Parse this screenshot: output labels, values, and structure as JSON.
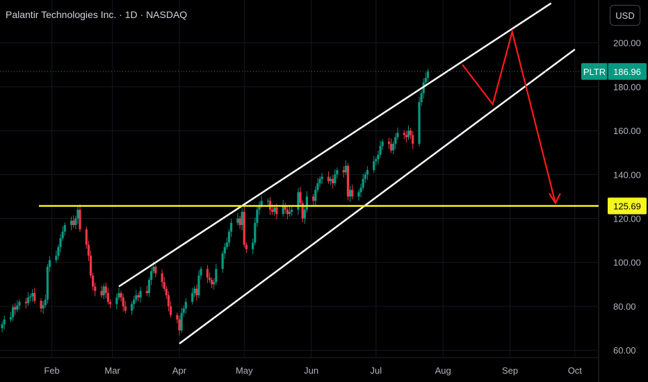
{
  "header": {
    "title": "Palantir Technologies Inc. · 1D · NASDAQ",
    "currency_button": "USD"
  },
  "price_tag": {
    "symbol": "PLTR",
    "value": "186.96",
    "color": "#089981"
  },
  "level_tag": {
    "value": "125.69",
    "color": "#f5f51f"
  },
  "colors": {
    "up": "#089981",
    "down": "#f23645",
    "channel": "#ffffff",
    "level": "#f5f51f",
    "projection": "#ff1a1a"
  },
  "chart_data": {
    "type": "candlestick",
    "ylim": [
      55,
      210
    ],
    "y_ticks": [
      60,
      80,
      100,
      120,
      140,
      160,
      180,
      200
    ],
    "y_tick_labels": [
      "60.00",
      "80.00",
      "100.00",
      "120.00",
      "140.00",
      "160.00",
      "180.00",
      "200.00"
    ],
    "x_ticks": [
      "2025-02-01",
      "2025-03-01",
      "2025-04-01",
      "2025-05-01",
      "2025-06-01",
      "2025-07-01",
      "2025-08-01",
      "2025-09-01",
      "2025-10-01"
    ],
    "x_tick_labels": [
      "Feb",
      "Mar",
      "Apr",
      "May",
      "Jun",
      "Jul",
      "Aug",
      "Sep",
      "Oct"
    ],
    "xlim": [
      "2025-01-08",
      "2025-10-12"
    ],
    "series": [
      {
        "close": [
          71.8,
          74.0,
          75.0,
          79.6,
          78.5,
          80.4,
          82.0,
          81.4,
          84.0,
          84.5,
          86.0,
          82.5,
          79.0,
          80.5,
          83.0,
          98.0,
          101.0,
          103.0,
          107.0,
          111.0,
          114.0,
          117.0,
          119.0,
          117.0,
          120.0,
          124.0,
          115.0,
          108.0,
          103.0,
          94.0,
          89.0,
          87.0,
          85.0,
          89.0,
          86.0,
          82.0,
          81.0,
          84.0,
          86.0,
          84.0,
          80.0,
          78.0,
          81.0,
          83.0,
          85.0,
          84.0,
          87.0,
          86.0,
          92.0,
          96.0,
          98.0,
          95.0,
          91.0,
          88.0,
          85.0,
          80.0,
          76.0,
          74.0,
          69.0,
          77.0,
          79.0,
          82.0,
          86.0,
          88.0,
          85.0,
          94.0,
          97.0,
          93.0,
          92.0,
          90.0,
          91.0,
          97.0,
          104.0,
          107.0,
          109.0,
          114.0,
          118.0,
          120.0,
          117.0,
          123.0,
          108.0,
          106.0,
          109.0,
          118.0,
          124.0,
          126.0,
          128.0,
          128.0,
          124.0,
          123.0,
          125.0,
          122.0,
          126.0,
          124.0,
          122.0,
          123.0,
          124.0,
          132.0,
          127.0,
          120.0,
          124.0,
          130.0,
          128.0,
          133.0,
          136.0,
          138.0,
          139.0,
          137.0,
          138.0,
          136.0,
          140.0,
          142.0,
          141.0,
          144.0,
          130.0,
          133.0,
          130.0,
          132.0,
          134.0,
          138.0,
          140.0,
          142.0,
          146.0,
          147.0,
          149.0,
          153.0,
          155.0,
          154.0,
          151.0,
          154.0,
          157.0,
          159.0,
          158.0,
          157.0,
          160.0,
          158.0,
          154.0,
          173.0,
          177.0,
          182.0,
          184.0,
          187.0
        ],
        "open": [
          70.0,
          71.8,
          74.0,
          75.0,
          79.6,
          78.5,
          80.4,
          82.0,
          81.4,
          84.0,
          84.5,
          86.0,
          82.5,
          79.0,
          80.5,
          83.0,
          98.0,
          101.0,
          103.0,
          107.0,
          111.0,
          114.0,
          117.0,
          119.0,
          117.0,
          120.0,
          124.0,
          115.0,
          108.0,
          103.0,
          94.0,
          89.0,
          87.0,
          85.0,
          89.0,
          86.0,
          82.0,
          81.0,
          84.0,
          86.0,
          84.0,
          80.0,
          78.0,
          81.0,
          83.0,
          85.0,
          84.0,
          87.0,
          86.0,
          92.0,
          96.0,
          98.0,
          95.0,
          91.0,
          88.0,
          85.0,
          80.0,
          76.0,
          74.0,
          69.0,
          77.0,
          79.0,
          82.0,
          86.0,
          88.0,
          85.0,
          94.0,
          97.0,
          93.0,
          92.0,
          90.0,
          91.0,
          97.0,
          104.0,
          107.0,
          109.0,
          114.0,
          118.0,
          120.0,
          117.0,
          123.0,
          108.0,
          106.0,
          109.0,
          118.0,
          124.0,
          126.0,
          128.0,
          128.0,
          124.0,
          123.0,
          125.0,
          122.0,
          126.0,
          124.0,
          122.0,
          123.0,
          124.0,
          132.0,
          127.0,
          120.0,
          124.0,
          130.0,
          128.0,
          133.0,
          136.0,
          138.0,
          139.0,
          137.0,
          138.0,
          136.0,
          140.0,
          142.0,
          141.0,
          144.0,
          130.0,
          133.0,
          130.0,
          132.0,
          134.0,
          138.0,
          140.0,
          142.0,
          146.0,
          147.0,
          149.0,
          153.0,
          155.0,
          154.0,
          151.0,
          154.0,
          157.0,
          159.0,
          158.0,
          157.0,
          160.0,
          158.0,
          154.0,
          173.0,
          177.0,
          182.0,
          184.0
        ]
      }
    ],
    "channel_upper": [
      [
        "2025-03-04",
        89.0
      ],
      [
        "2025-09-20",
        218.0
      ]
    ],
    "channel_lower": [
      [
        "2025-04-01",
        63.0
      ],
      [
        "2025-10-01",
        197.0
      ]
    ],
    "support_level": 125.69,
    "current_price": 186.96,
    "projection": [
      [
        "2025-08-10",
        190.0
      ],
      [
        "2025-08-24",
        172.0
      ],
      [
        "2025-09-02",
        205.0
      ],
      [
        "2025-09-22",
        127.0
      ]
    ]
  }
}
